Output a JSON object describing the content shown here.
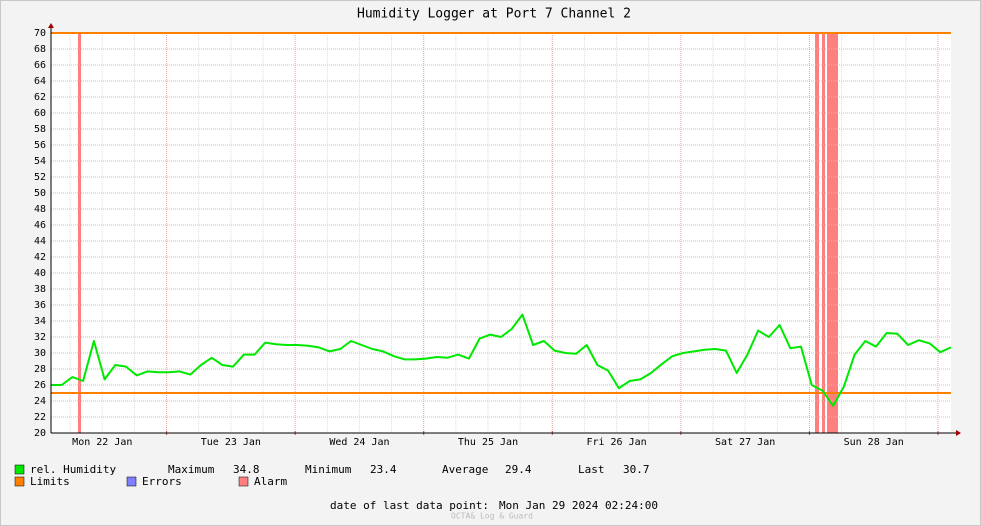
{
  "chart_data": {
    "type": "line",
    "title": "Humidity Logger at Port 7 Channel 2",
    "x_labels": [
      "Mon 22 Jan",
      "Tue 23 Jan",
      "Wed 24 Jan",
      "Thu 25 Jan",
      "Fri 26 Jan",
      "Sat 27 Jan",
      "Sun 28 Jan"
    ],
    "series": [
      {
        "name": "rel. Humidity",
        "color": "#00e800",
        "values": [
          26,
          26,
          27,
          26.5,
          31.5,
          26.7,
          28.5,
          28.3,
          27.2,
          27.7,
          27.6,
          27.6,
          27.7,
          27.3,
          28.5,
          29.4,
          28.5,
          28.3,
          29.8,
          29.8,
          31.3,
          31.1,
          31,
          31,
          30.9,
          30.7,
          30.2,
          30.5,
          31.5,
          31,
          30.5,
          30.2,
          29.6,
          29.2,
          29.2,
          29.3,
          29.5,
          29.4,
          29.8,
          29.3,
          31.8,
          32.3,
          32,
          33,
          34.8,
          31,
          31.5,
          30.3,
          30,
          29.9,
          31,
          28.5,
          27.8,
          25.6,
          26.5,
          26.7,
          27.5,
          28.6,
          29.6,
          30,
          30.2,
          30.4,
          30.5,
          30.3,
          27.5,
          29.8,
          32.8,
          32,
          33.5,
          30.6,
          30.8,
          26,
          25.3,
          23.4,
          25.8,
          29.8,
          31.5,
          30.8,
          32.5,
          32.4,
          31,
          31.6,
          31.2,
          30.1,
          30.7
        ]
      }
    ],
    "limits": {
      "name": "Limits",
      "color": "#ff7f00",
      "values": [
        70,
        25
      ]
    },
    "legend_extra": [
      {
        "name": "Errors",
        "color": "#7f7fff"
      },
      {
        "name": "Alarm",
        "color": "#ff7f7f"
      }
    ],
    "stats": [
      {
        "label": "Maximum",
        "value": 34.8
      },
      {
        "label": "Minimum",
        "value": 23.4
      },
      {
        "label": "Average",
        "value": 29.4
      },
      {
        "label": "Last",
        "value": 30.7
      }
    ],
    "footer": {
      "label": "date of last data point:",
      "value": "Mon Jan 29 2024 02:24:00"
    },
    "watermark": "OCTA& Log & Guard",
    "ylim": [
      20,
      70
    ],
    "yticks": [
      20,
      22,
      24,
      26,
      28,
      30,
      32,
      34,
      36,
      38,
      40,
      42,
      44,
      46,
      48,
      50,
      52,
      54,
      56,
      58,
      60,
      62,
      64,
      66,
      68,
      70
    ],
    "grid": true
  }
}
